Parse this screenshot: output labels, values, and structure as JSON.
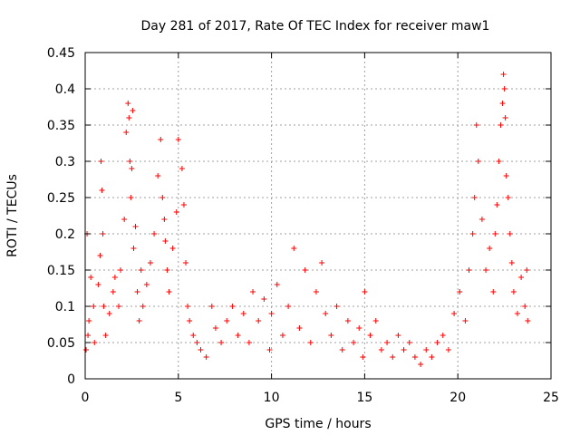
{
  "chart_data": {
    "type": "scatter",
    "title": "Day 281 of 2017, Rate Of TEC Index for receiver maw1",
    "xlabel": "GPS time / hours",
    "ylabel": "ROTI / TECUs",
    "xlim": [
      0,
      25
    ],
    "ylim": [
      0,
      0.45
    ],
    "xticks": [
      0,
      5,
      10,
      15,
      20,
      25
    ],
    "yticks": [
      0,
      0.05,
      0.1,
      0.15,
      0.2,
      0.25,
      0.3,
      0.35,
      0.4,
      0.45
    ],
    "xtick_labels": [
      "0",
      "5",
      "10",
      "15",
      "20",
      "25"
    ],
    "ytick_labels": [
      "0",
      "0.05",
      "0.1",
      "0.15",
      "0.2",
      "0.25",
      "0.3",
      "0.35",
      "0.4",
      "0.45"
    ],
    "grid": true,
    "marker": "+",
    "color": "#ff0000",
    "series": [
      {
        "name": "maw1",
        "x": [
          0.05,
          0.1,
          0.15,
          0.2,
          0.3,
          0.45,
          0.5,
          0.7,
          0.8,
          0.85,
          0.9,
          0.95,
          1.0,
          1.1,
          1.3,
          1.5,
          1.6,
          1.8,
          1.9,
          2.1,
          2.2,
          2.3,
          2.35,
          2.4,
          2.45,
          2.5,
          2.55,
          2.6,
          2.7,
          2.8,
          2.9,
          3.0,
          3.1,
          3.3,
          3.5,
          3.7,
          3.9,
          4.05,
          4.15,
          4.25,
          4.3,
          4.4,
          4.5,
          4.7,
          4.9,
          5.0,
          5.2,
          5.3,
          5.4,
          5.5,
          5.6,
          5.8,
          6.0,
          6.2,
          6.5,
          6.8,
          7.0,
          7.3,
          7.6,
          7.9,
          8.2,
          8.5,
          8.8,
          9.0,
          9.3,
          9.6,
          9.9,
          10.0,
          10.3,
          10.6,
          10.9,
          11.2,
          11.5,
          11.8,
          12.1,
          12.4,
          12.7,
          12.9,
          13.2,
          13.5,
          13.8,
          14.1,
          14.4,
          14.7,
          14.9,
          15.0,
          15.3,
          15.6,
          15.9,
          16.2,
          16.5,
          16.8,
          17.1,
          17.4,
          17.7,
          18.0,
          18.3,
          18.6,
          18.9,
          19.2,
          19.5,
          19.8,
          20.1,
          20.4,
          20.6,
          20.8,
          20.9,
          21.0,
          21.1,
          21.3,
          21.5,
          21.7,
          21.9,
          22.0,
          22.1,
          22.2,
          22.3,
          22.4,
          22.45,
          22.5,
          22.55,
          22.6,
          22.7,
          22.8,
          22.9,
          23.0,
          23.2,
          23.4,
          23.6,
          23.7,
          23.75
        ],
        "y": [
          0.04,
          0.2,
          0.06,
          0.08,
          0.14,
          0.1,
          0.05,
          0.13,
          0.17,
          0.3,
          0.26,
          0.2,
          0.1,
          0.06,
          0.09,
          0.12,
          0.14,
          0.1,
          0.15,
          0.22,
          0.34,
          0.38,
          0.36,
          0.3,
          0.25,
          0.29,
          0.37,
          0.18,
          0.21,
          0.12,
          0.08,
          0.15,
          0.1,
          0.13,
          0.16,
          0.2,
          0.28,
          0.33,
          0.25,
          0.22,
          0.19,
          0.15,
          0.12,
          0.18,
          0.23,
          0.33,
          0.29,
          0.24,
          0.16,
          0.1,
          0.08,
          0.06,
          0.05,
          0.04,
          0.03,
          0.1,
          0.07,
          0.05,
          0.08,
          0.1,
          0.06,
          0.09,
          0.05,
          0.12,
          0.08,
          0.11,
          0.04,
          0.09,
          0.13,
          0.06,
          0.1,
          0.18,
          0.07,
          0.15,
          0.05,
          0.12,
          0.16,
          0.09,
          0.06,
          0.1,
          0.04,
          0.08,
          0.05,
          0.07,
          0.03,
          0.12,
          0.06,
          0.08,
          0.04,
          0.05,
          0.03,
          0.06,
          0.04,
          0.05,
          0.03,
          0.02,
          0.04,
          0.03,
          0.05,
          0.06,
          0.04,
          0.09,
          0.12,
          0.08,
          0.15,
          0.2,
          0.25,
          0.35,
          0.3,
          0.22,
          0.15,
          0.18,
          0.12,
          0.2,
          0.24,
          0.3,
          0.35,
          0.38,
          0.42,
          0.4,
          0.36,
          0.28,
          0.25,
          0.2,
          0.16,
          0.12,
          0.09,
          0.14,
          0.1,
          0.15,
          0.08
        ]
      }
    ]
  }
}
